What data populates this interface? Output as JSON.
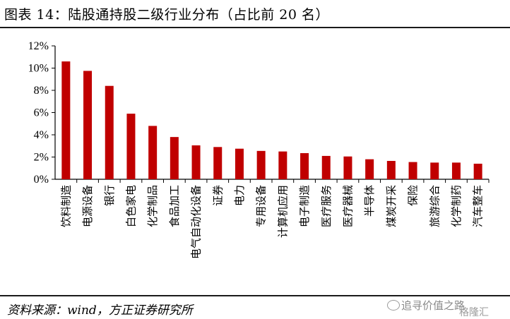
{
  "header": {
    "title": "图表 14：陆股通持股二级行业分布（占比前 20 名）"
  },
  "footer": {
    "source": "资料来源：wind，方正证券研究所",
    "watermark_left": "追寻价值之路",
    "watermark_right": "格隆汇"
  },
  "chart_data": {
    "type": "bar",
    "title": "",
    "xlabel": "",
    "ylabel": "",
    "ylim": [
      0,
      12
    ],
    "y_unit": "%",
    "y_ticks": [
      "0%",
      "2%",
      "4%",
      "6%",
      "8%",
      "10%",
      "12%"
    ],
    "grid": false,
    "bar_color": "#c00000",
    "categories": [
      "饮料制造",
      "电源设备",
      "银行",
      "白色家电",
      "化学制品",
      "食品加工",
      "电气自动化设备",
      "证券",
      "电力",
      "专用设备",
      "计算机应用",
      "电子制造",
      "医疗服务",
      "医疗器械",
      "半导体",
      "煤炭开采",
      "保险",
      "旅游综合",
      "化学制药",
      "汽车整车"
    ],
    "values": [
      10.6,
      9.75,
      8.4,
      5.9,
      4.8,
      3.8,
      3.05,
      2.9,
      2.75,
      2.55,
      2.5,
      2.35,
      2.1,
      2.05,
      1.8,
      1.65,
      1.55,
      1.5,
      1.5,
      1.4
    ]
  }
}
